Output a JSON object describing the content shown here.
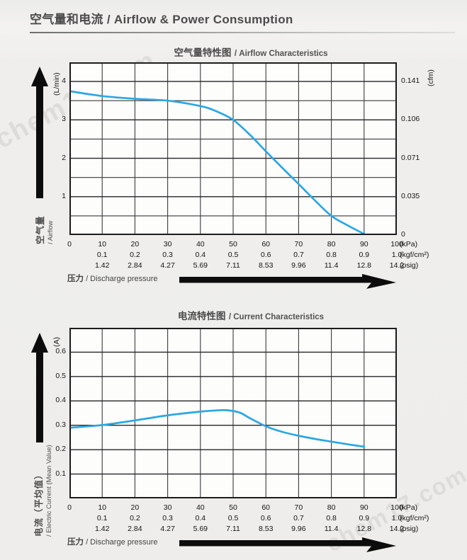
{
  "page": {
    "header": "空气量和电流 / Airflow & Power Consumption",
    "watermark": "chem17.com"
  },
  "pressure_axis": {
    "label_zh": "压力",
    "label_en": "/ Discharge pressure",
    "rows": [
      {
        "unit": "(kPa)",
        "labels": [
          "0",
          "10",
          "20",
          "30",
          "40",
          "50",
          "60",
          "70",
          "80",
          "90",
          "100"
        ]
      },
      {
        "unit": "(kgf/cm²)",
        "labels": [
          "",
          "0.1",
          "0.2",
          "0.3",
          "0.4",
          "0.5",
          "0.6",
          "0.7",
          "0.8",
          "0.9",
          "1.0"
        ]
      },
      {
        "unit": "(psig)",
        "labels": [
          "",
          "1.42",
          "2.84",
          "4.27",
          "5.69",
          "7.11",
          "8.53",
          "9.96",
          "11.4",
          "12.8",
          "14.2"
        ]
      }
    ]
  },
  "chart_data": [
    {
      "type": "line",
      "title_zh": "空气量特性图",
      "title_en": "/ Airflow Characteristics",
      "x_axis": {
        "min": 0,
        "max": 100,
        "grid_step": 10,
        "unit": "kPa"
      },
      "y_axis": {
        "unit": "(L/min)",
        "label_zh": "空气量",
        "label_en": "/ Airflow",
        "min": 0,
        "max": 4.5,
        "grid_step": 0.5,
        "ticks": [
          4,
          3,
          2,
          1
        ]
      },
      "y2_axis": {
        "unit": "(cfm)",
        "ticks": [
          {
            "at": 4,
            "label": "0.141"
          },
          {
            "at": 3,
            "label": "0.106"
          },
          {
            "at": 2,
            "label": "0.071"
          },
          {
            "at": 1,
            "label": "0.035"
          },
          {
            "at": 0,
            "label": "0"
          }
        ]
      },
      "grid": true,
      "series": [
        {
          "name": "airflow",
          "color": "#2BA7E1",
          "points": [
            [
              0,
              3.75
            ],
            [
              10,
              3.62
            ],
            [
              20,
              3.55
            ],
            [
              30,
              3.5
            ],
            [
              40,
              3.36
            ],
            [
              45,
              3.22
            ],
            [
              50,
              3.0
            ],
            [
              55,
              2.62
            ],
            [
              60,
              2.18
            ],
            [
              65,
              1.75
            ],
            [
              70,
              1.33
            ],
            [
              75,
              0.9
            ],
            [
              80,
              0.5
            ],
            [
              85,
              0.25
            ],
            [
              90,
              0.03
            ]
          ]
        }
      ]
    },
    {
      "type": "line",
      "title_zh": "电流特性图",
      "title_en": "/ Current Characteristics",
      "x_axis": {
        "min": 0,
        "max": 100,
        "grid_step": 10,
        "unit": "kPa"
      },
      "y_axis": {
        "unit": "(A)",
        "label_zh": "电流（平均值）",
        "label_en": "/ Electric Current (Mean Value)",
        "min": 0,
        "max": 0.7,
        "grid_step": 0.1,
        "ticks": [
          0.6,
          0.5,
          0.4,
          0.3,
          0.2,
          0.1
        ]
      },
      "grid": true,
      "series": [
        {
          "name": "electric-current",
          "color": "#2BA7E1",
          "points": [
            [
              0,
              0.29
            ],
            [
              10,
              0.301
            ],
            [
              20,
              0.32
            ],
            [
              30,
              0.341
            ],
            [
              40,
              0.356
            ],
            [
              45,
              0.361
            ],
            [
              48,
              0.362
            ],
            [
              52,
              0.352
            ],
            [
              55,
              0.33
            ],
            [
              60,
              0.296
            ],
            [
              65,
              0.273
            ],
            [
              70,
              0.257
            ],
            [
              75,
              0.244
            ],
            [
              80,
              0.233
            ],
            [
              85,
              0.222
            ],
            [
              90,
              0.212
            ]
          ]
        }
      ]
    }
  ]
}
